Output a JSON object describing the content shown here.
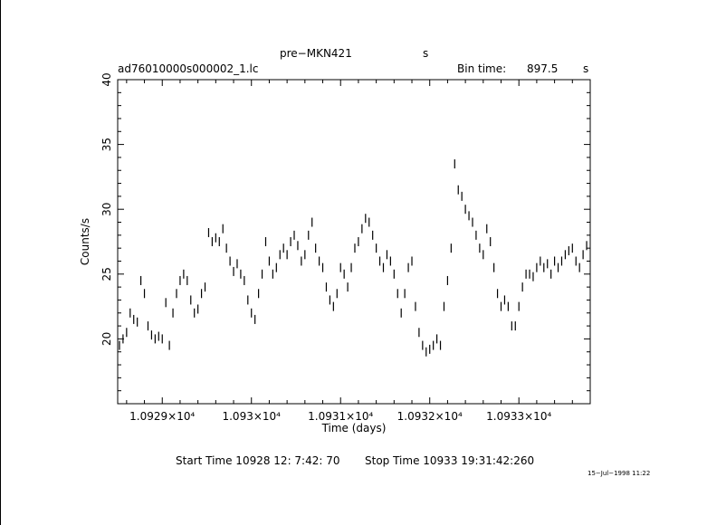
{
  "header": {
    "target": "pre−MKN421",
    "target_unit": "s",
    "file": "ad76010000s000002_1.lc",
    "bin_label": "Bin time:",
    "bin_value": "897.5",
    "bin_unit": "s"
  },
  "footer": {
    "start": "Start Time 10928 12: 7:42: 70",
    "stop": "Stop Time 10933 19:31:42:260",
    "stamp": "15−Jul−1998 11:22"
  },
  "chart_data": {
    "type": "scatter",
    "xlabel": "Time (days)",
    "ylabel": "Counts/s",
    "xlim": [
      10928.5,
      10933.8
    ],
    "ylim": [
      15,
      40
    ],
    "y_ticks": [
      20,
      25,
      30,
      35,
      40
    ],
    "x_ticks": [
      {
        "value": 10929,
        "label": "1.0929×10⁴"
      },
      {
        "value": 10930,
        "label": "1.093×10⁴"
      },
      {
        "value": 10931,
        "label": "1.0931×10⁴"
      },
      {
        "value": 10932,
        "label": "1.0932×10⁴"
      },
      {
        "value": 10933,
        "label": "1.0933×10⁴"
      }
    ],
    "points": [
      [
        10928.52,
        19.5
      ],
      [
        10928.56,
        20.0
      ],
      [
        10928.6,
        20.5
      ],
      [
        10928.64,
        22.0
      ],
      [
        10928.68,
        21.5
      ],
      [
        10928.72,
        21.3
      ],
      [
        10928.76,
        24.5
      ],
      [
        10928.8,
        23.5
      ],
      [
        10928.84,
        21.0
      ],
      [
        10928.88,
        20.3
      ],
      [
        10928.92,
        20.0
      ],
      [
        10928.96,
        20.2
      ],
      [
        10929.0,
        20.0
      ],
      [
        10929.04,
        22.8
      ],
      [
        10929.08,
        19.5
      ],
      [
        10929.12,
        22.0
      ],
      [
        10929.16,
        23.5
      ],
      [
        10929.2,
        24.5
      ],
      [
        10929.24,
        25.0
      ],
      [
        10929.28,
        24.5
      ],
      [
        10929.32,
        23.0
      ],
      [
        10929.36,
        22.0
      ],
      [
        10929.4,
        22.3
      ],
      [
        10929.44,
        23.5
      ],
      [
        10929.48,
        24.0
      ],
      [
        10929.52,
        28.2
      ],
      [
        10929.56,
        27.5
      ],
      [
        10929.6,
        27.8
      ],
      [
        10929.64,
        27.5
      ],
      [
        10929.68,
        28.5
      ],
      [
        10929.72,
        27.0
      ],
      [
        10929.76,
        26.0
      ],
      [
        10929.8,
        25.2
      ],
      [
        10929.84,
        25.8
      ],
      [
        10929.88,
        25.0
      ],
      [
        10929.92,
        24.5
      ],
      [
        10929.96,
        23.0
      ],
      [
        10930.0,
        22.0
      ],
      [
        10930.04,
        21.5
      ],
      [
        10930.08,
        23.5
      ],
      [
        10930.12,
        25.0
      ],
      [
        10930.16,
        27.5
      ],
      [
        10930.2,
        26.0
      ],
      [
        10930.24,
        25.0
      ],
      [
        10930.28,
        25.5
      ],
      [
        10930.32,
        26.5
      ],
      [
        10930.36,
        27.0
      ],
      [
        10930.4,
        26.5
      ],
      [
        10930.44,
        27.5
      ],
      [
        10930.48,
        28.0
      ],
      [
        10930.52,
        27.2
      ],
      [
        10930.56,
        26.0
      ],
      [
        10930.6,
        26.5
      ],
      [
        10930.64,
        28.0
      ],
      [
        10930.68,
        29.0
      ],
      [
        10930.72,
        27.0
      ],
      [
        10930.76,
        26.0
      ],
      [
        10930.8,
        25.5
      ],
      [
        10930.84,
        24.0
      ],
      [
        10930.88,
        23.0
      ],
      [
        10930.92,
        22.5
      ],
      [
        10930.96,
        23.5
      ],
      [
        10931.0,
        25.5
      ],
      [
        10931.04,
        25.0
      ],
      [
        10931.08,
        24.0
      ],
      [
        10931.12,
        25.5
      ],
      [
        10931.16,
        27.0
      ],
      [
        10931.2,
        27.5
      ],
      [
        10931.24,
        28.5
      ],
      [
        10931.28,
        29.3
      ],
      [
        10931.32,
        29.0
      ],
      [
        10931.36,
        28.0
      ],
      [
        10931.4,
        27.0
      ],
      [
        10931.44,
        26.0
      ],
      [
        10931.48,
        25.5
      ],
      [
        10931.52,
        26.5
      ],
      [
        10931.56,
        26.0
      ],
      [
        10931.6,
        25.0
      ],
      [
        10931.64,
        23.5
      ],
      [
        10931.68,
        22.0
      ],
      [
        10931.72,
        23.5
      ],
      [
        10931.76,
        25.5
      ],
      [
        10931.8,
        26.0
      ],
      [
        10931.84,
        22.5
      ],
      [
        10931.88,
        20.5
      ],
      [
        10931.92,
        19.5
      ],
      [
        10931.96,
        19.0
      ],
      [
        10932.0,
        19.2
      ],
      [
        10932.04,
        19.5
      ],
      [
        10932.08,
        20.0
      ],
      [
        10932.12,
        19.5
      ],
      [
        10932.16,
        22.5
      ],
      [
        10932.2,
        24.5
      ],
      [
        10932.24,
        27.0
      ],
      [
        10932.28,
        33.5
      ],
      [
        10932.32,
        31.5
      ],
      [
        10932.36,
        31.0
      ],
      [
        10932.4,
        30.0
      ],
      [
        10932.44,
        29.5
      ],
      [
        10932.48,
        29.0
      ],
      [
        10932.52,
        28.0
      ],
      [
        10932.56,
        27.0
      ],
      [
        10932.6,
        26.5
      ],
      [
        10932.64,
        28.5
      ],
      [
        10932.68,
        27.5
      ],
      [
        10932.72,
        25.5
      ],
      [
        10932.76,
        23.5
      ],
      [
        10932.8,
        22.5
      ],
      [
        10932.84,
        23.0
      ],
      [
        10932.88,
        22.5
      ],
      [
        10932.92,
        21.0
      ],
      [
        10932.96,
        21.0
      ],
      [
        10933.0,
        22.5
      ],
      [
        10933.04,
        24.0
      ],
      [
        10933.08,
        25.0
      ],
      [
        10933.12,
        25.0
      ],
      [
        10933.16,
        24.8
      ],
      [
        10933.2,
        25.5
      ],
      [
        10933.24,
        26.0
      ],
      [
        10933.28,
        25.5
      ],
      [
        10933.32,
        25.8
      ],
      [
        10933.36,
        25.0
      ],
      [
        10933.4,
        26.0
      ],
      [
        10933.44,
        25.5
      ],
      [
        10933.48,
        26.0
      ],
      [
        10933.52,
        26.5
      ],
      [
        10933.56,
        26.8
      ],
      [
        10933.6,
        27.0
      ],
      [
        10933.64,
        26.0
      ],
      [
        10933.68,
        25.5
      ],
      [
        10933.72,
        26.5
      ],
      [
        10933.76,
        27.2
      ]
    ]
  }
}
